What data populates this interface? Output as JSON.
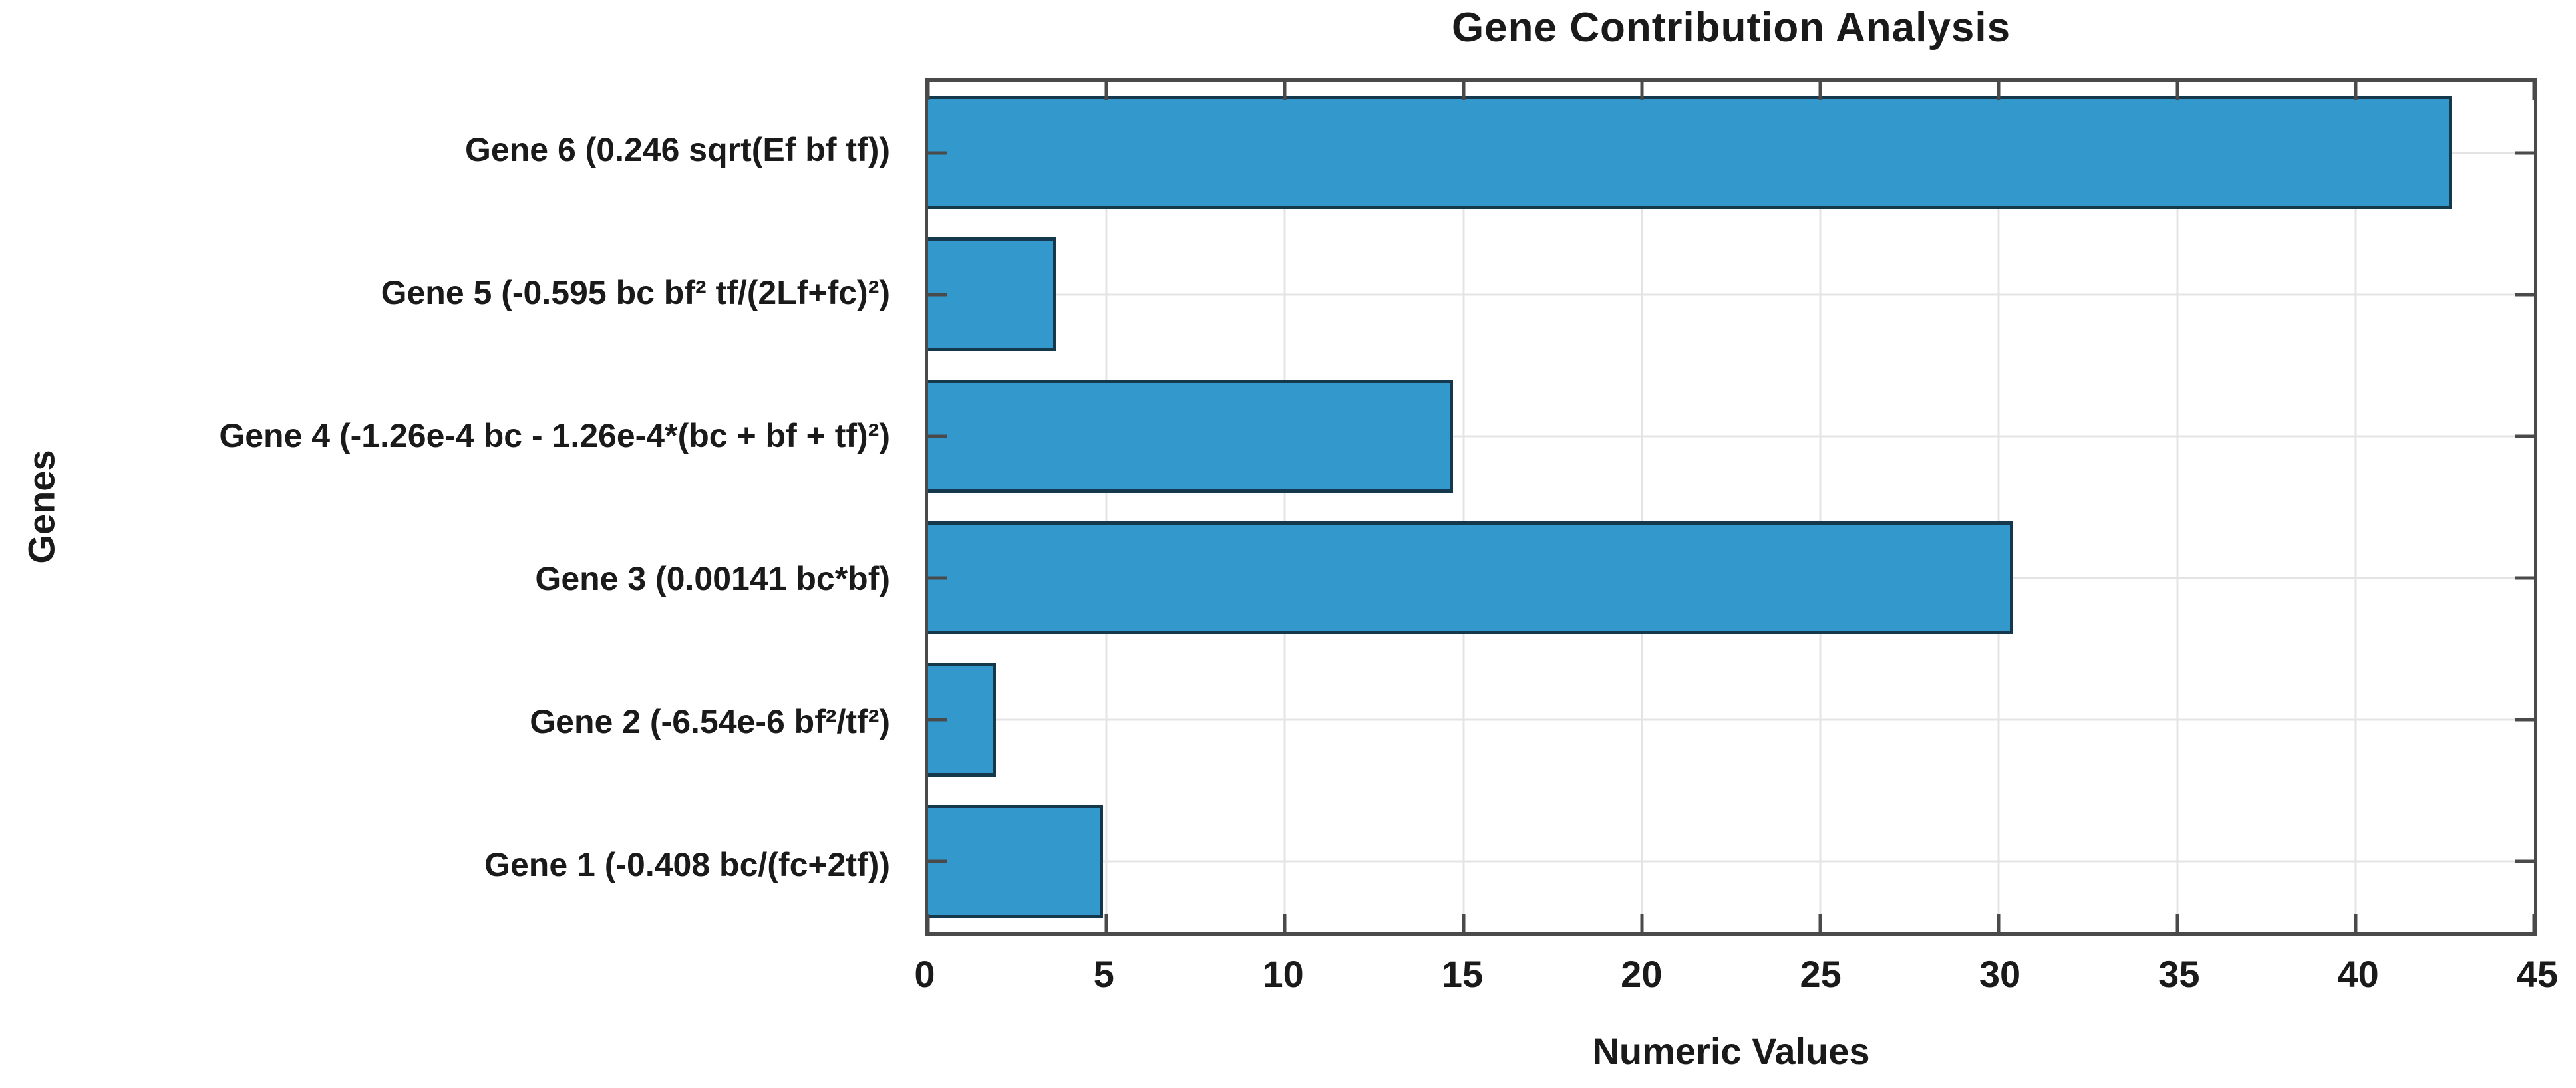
{
  "chart_data": {
    "type": "bar",
    "orientation": "horizontal",
    "title": "Gene Contribution Analysis",
    "xlabel": "Numeric Values",
    "ylabel": "Genes",
    "categories": [
      "Gene 1 (-0.408 bc/(fc+2tf))",
      "Gene 2 (-6.54e-6 bf²/tf²)",
      "Gene 3 (0.00141 bc*bf)",
      "Gene 4 (-1.26e-4 bc - 1.26e-4*(bc + bf + tf)²)",
      "Gene 5 (-0.595 bc bf² tf/(2Lf+fc)²)",
      "Gene 6 (0.246 sqrt(Ef bf tf))"
    ],
    "values": [
      4.9,
      1.9,
      30.4,
      14.7,
      3.6,
      42.7
    ],
    "xlim": [
      0,
      45
    ],
    "xticks": [
      0,
      5,
      10,
      15,
      20,
      25,
      30,
      35,
      40,
      45
    ],
    "grid": true,
    "legend_position": "none",
    "bar_color": "#3399CC",
    "bar_edge_color": "#16384C",
    "axis_color": "#4A4A4A",
    "grid_color": "#E4E4E4",
    "bar_height_fraction": 0.8
  }
}
